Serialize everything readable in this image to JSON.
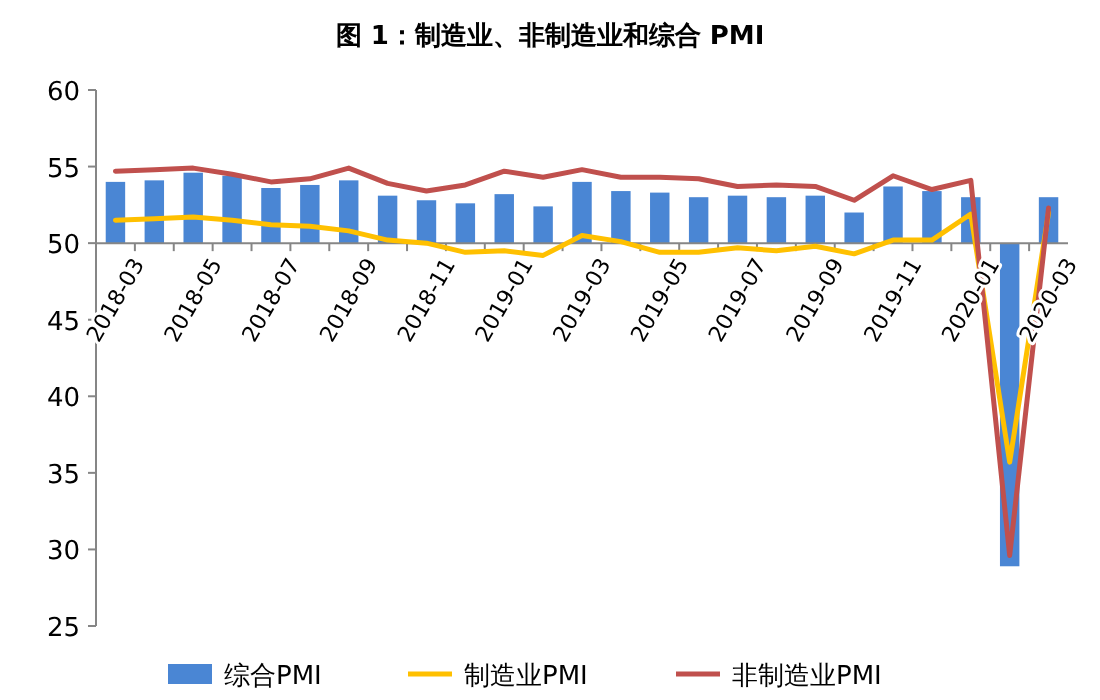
{
  "chart_data": {
    "type": "bar",
    "title": "图 1：制造业、非制造业和综合 PMI",
    "categories": [
      "2018-03",
      null,
      "2018-05",
      null,
      "2018-07",
      null,
      "2018-09",
      null,
      "2018-11",
      null,
      "2019-01",
      null,
      "2019-03",
      null,
      "2019-05",
      null,
      "2019-07",
      null,
      "2019-09",
      null,
      "2019-11",
      null,
      "2020-01",
      null,
      "2020-03"
    ],
    "series": [
      {
        "name": "综合PMI",
        "color": "#4a86d4",
        "base": [
          50,
          50,
          50,
          50,
          50,
          50,
          50,
          50,
          50,
          50,
          50,
          50,
          50,
          50,
          50,
          50,
          50,
          50,
          50,
          50,
          50,
          50,
          50,
          50,
          50
        ],
        "values": [
          4.0,
          4.1,
          4.6,
          4.4,
          3.6,
          3.8,
          4.1,
          3.1,
          2.8,
          2.6,
          3.2,
          2.4,
          4.0,
          3.4,
          3.3,
          3.0,
          3.1,
          3.0,
          3.1,
          2.0,
          3.7,
          3.4,
          3.0,
          -21.1,
          3.0
        ]
      },
      {
        "name": "制造业PMI",
        "type": "line",
        "color": "#ffc000",
        "values": [
          51.5,
          51.6,
          51.7,
          51.5,
          51.2,
          51.1,
          50.8,
          50.2,
          50.0,
          49.4,
          49.5,
          49.2,
          50.5,
          50.1,
          49.4,
          49.4,
          49.7,
          49.5,
          49.8,
          49.3,
          50.2,
          50.2,
          51.9,
          35.7,
          52.0
        ]
      },
      {
        "name": "非制造业PMI",
        "type": "line",
        "color": "#c0504d",
        "values": [
          54.7,
          54.8,
          54.9,
          54.5,
          54.0,
          54.2,
          54.9,
          53.9,
          53.4,
          53.8,
          54.7,
          54.3,
          54.8,
          54.3,
          54.3,
          54.2,
          53.7,
          53.8,
          53.7,
          52.8,
          54.4,
          53.5,
          54.1,
          29.6,
          52.3
        ]
      }
    ],
    "ylim": [
      25,
      60
    ],
    "yticks": [
      25,
      30,
      35,
      40,
      45,
      50,
      55,
      60
    ],
    "legend": "bottom",
    "grid": false
  }
}
